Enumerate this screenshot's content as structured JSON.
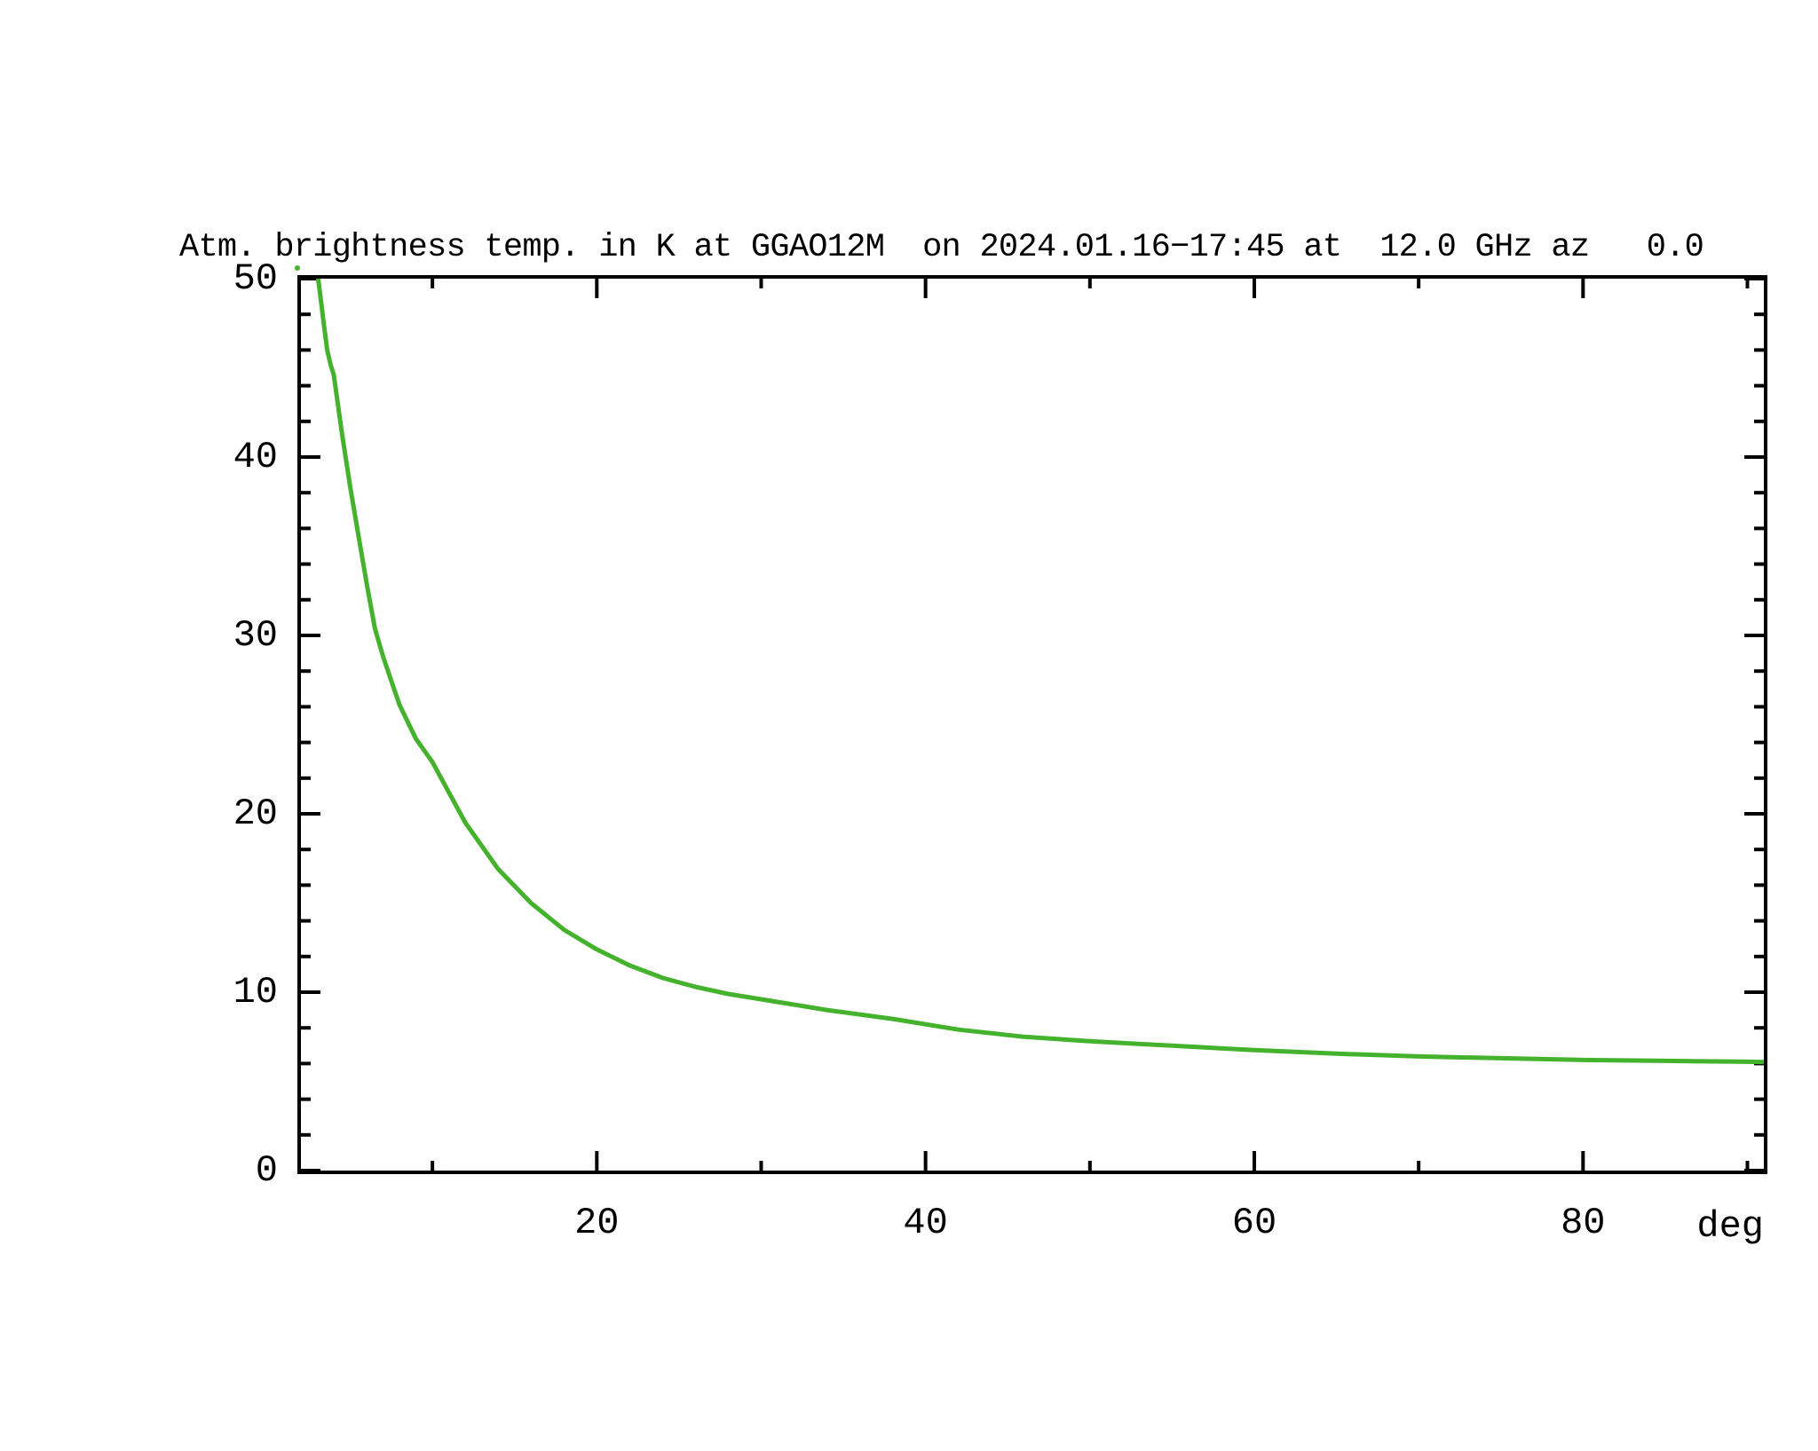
{
  "chart_data": {
    "type": "line",
    "title": "Atm. brightness temp. in K at GGAO12M  on 2024.01.16−17:45 at  12.0 GHz az   0.0",
    "xlabel": "deg",
    "ylabel": "",
    "grid": false,
    "legend": false,
    "background_color": "#ffffff",
    "axis_color": "#000000",
    "text_color": "#000000",
    "x_axis": {
      "min": 2,
      "max": 91,
      "major_ticks": [
        20,
        40,
        60,
        80
      ],
      "minor_ticks": [
        10,
        30,
        50,
        70,
        90
      ],
      "unit_label": "deg"
    },
    "y_axis": {
      "min": 0,
      "max": 50,
      "major_ticks": [
        0,
        10,
        20,
        30,
        40,
        50
      ],
      "minor_tick_step": 2
    },
    "series": [
      {
        "name": "atm-brightness-temperature",
        "color": "#44b22c",
        "points": [
          [
            3.05,
            50.0
          ],
          [
            3.2,
            48.9
          ],
          [
            3.4,
            47.4
          ],
          [
            3.6,
            46.0
          ],
          [
            3.8,
            45.2
          ],
          [
            4.0,
            44.6
          ],
          [
            4.5,
            41.3
          ],
          [
            5.0,
            38.3
          ],
          [
            5.5,
            35.6
          ],
          [
            6.0,
            32.9
          ],
          [
            6.5,
            30.4
          ],
          [
            7.0,
            28.8
          ],
          [
            8.0,
            26.1
          ],
          [
            9.0,
            24.2
          ],
          [
            10.0,
            22.9
          ],
          [
            11.0,
            21.2
          ],
          [
            12.0,
            19.5
          ],
          [
            14.0,
            16.9
          ],
          [
            16.0,
            15.0
          ],
          [
            18.0,
            13.5
          ],
          [
            20.0,
            12.4
          ],
          [
            22.0,
            11.5
          ],
          [
            24.0,
            10.8
          ],
          [
            26.0,
            10.3
          ],
          [
            28.0,
            9.9
          ],
          [
            30.0,
            9.6
          ],
          [
            34.0,
            9.0
          ],
          [
            38.0,
            8.5
          ],
          [
            42.0,
            7.9
          ],
          [
            46.0,
            7.5
          ],
          [
            50.0,
            7.25
          ],
          [
            55.0,
            7.0
          ],
          [
            60.0,
            6.75
          ],
          [
            65.0,
            6.55
          ],
          [
            70.0,
            6.4
          ],
          [
            75.0,
            6.3
          ],
          [
            80.0,
            6.2
          ],
          [
            85.0,
            6.15
          ],
          [
            90.0,
            6.1
          ],
          [
            91.0,
            6.08
          ]
        ]
      }
    ],
    "clipped_point": {
      "x": 1.8,
      "y": 50.6,
      "color": "#44b22c"
    }
  }
}
